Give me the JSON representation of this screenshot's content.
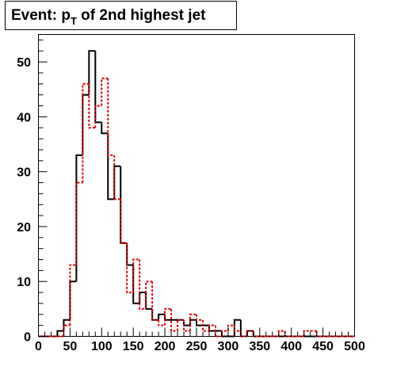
{
  "chart_data": {
    "type": "histogram",
    "title": {
      "prefix": "Event: p",
      "subscript": "T",
      "suffix": " of 2nd highest jet"
    },
    "xlabel": "",
    "ylabel": "",
    "xlim": [
      0,
      500
    ],
    "ylim": [
      0,
      55
    ],
    "bin_width": 10,
    "bin_edges_start": 0,
    "x_ticks": [
      0,
      50,
      100,
      150,
      200,
      250,
      300,
      350,
      400,
      450,
      500
    ],
    "x_tick_labels": [
      "0",
      "50",
      "100",
      "150",
      "200",
      "250",
      "300",
      "350",
      "400",
      "450",
      "500"
    ],
    "y_ticks": [
      0,
      10,
      20,
      30,
      40,
      50
    ],
    "y_tick_labels": [
      "0",
      "10",
      "20",
      "30",
      "40",
      "50"
    ],
    "grid": false,
    "legend": "none",
    "series": [
      {
        "style": "solid",
        "color": "#000000",
        "values": [
          0,
          0,
          0,
          1,
          3,
          10,
          33,
          44,
          52,
          39,
          37,
          25,
          31,
          17,
          13,
          6,
          8,
          5,
          3,
          4,
          3,
          3,
          3,
          2,
          3,
          2,
          2,
          1,
          1,
          0,
          0,
          3,
          0,
          1,
          0,
          0,
          0,
          0,
          0,
          0,
          0,
          0,
          0,
          0,
          0,
          0,
          0,
          0,
          0,
          0
        ]
      },
      {
        "style": "dashed",
        "color": "#dd0000",
        "values": [
          0,
          0,
          0,
          0,
          2,
          13,
          28,
          46,
          38,
          42,
          47,
          33,
          25,
          17,
          8,
          14,
          5,
          10,
          3,
          2,
          5,
          1,
          3,
          1,
          4,
          3,
          1,
          2,
          0,
          1,
          2,
          1,
          0,
          1,
          0,
          0,
          0,
          0,
          1,
          0,
          0,
          0,
          1,
          1,
          0,
          0,
          0,
          0,
          0,
          0
        ]
      }
    ]
  }
}
